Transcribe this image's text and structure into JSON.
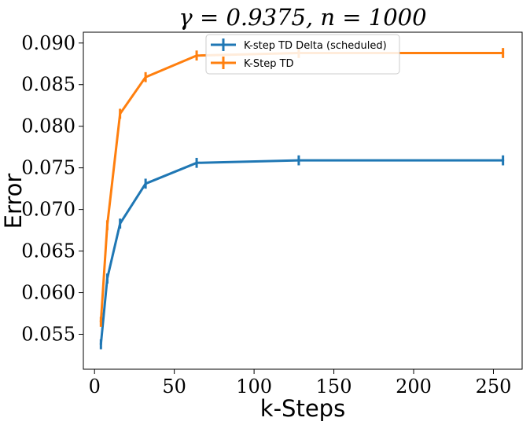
{
  "chart_data": {
    "type": "line",
    "title": "γ = 0.9375, n = 1000",
    "xlabel": "k-Steps",
    "ylabel": "Error",
    "xlim": [
      -7,
      268
    ],
    "ylim": [
      0.0508,
      0.0913
    ],
    "xticks": [
      0,
      50,
      100,
      150,
      200,
      250
    ],
    "xtick_labels": [
      "0",
      "50",
      "100",
      "150",
      "200",
      "250"
    ],
    "yticks": [
      0.055,
      0.06,
      0.065,
      0.07,
      0.075,
      0.08,
      0.085,
      0.09
    ],
    "ytick_labels": [
      "0.055",
      "0.060",
      "0.065",
      "0.070",
      "0.075",
      "0.080",
      "0.085",
      "0.090"
    ],
    "grid": false,
    "legend_position": "top-center",
    "series": [
      {
        "name": "K-step TD Delta (scheduled)",
        "color": "#1f77b4",
        "x": [
          4,
          8,
          16,
          32,
          64,
          128,
          256
        ],
        "y": [
          0.0538,
          0.0617,
          0.0683,
          0.0731,
          0.0756,
          0.0759,
          0.0759
        ],
        "yerr": [
          0.0006,
          0.0006,
          0.0006,
          0.0006,
          0.0006,
          0.0006,
          0.0006
        ]
      },
      {
        "name": "K-Step TD",
        "color": "#ff7f0e",
        "x": [
          4,
          8,
          16,
          32,
          64,
          128,
          256
        ],
        "y": [
          0.0565,
          0.0681,
          0.0815,
          0.0859,
          0.0885,
          0.0888,
          0.0888
        ],
        "yerr": [
          0.0006,
          0.0006,
          0.0006,
          0.0006,
          0.0006,
          0.0006,
          0.0006
        ]
      }
    ]
  }
}
